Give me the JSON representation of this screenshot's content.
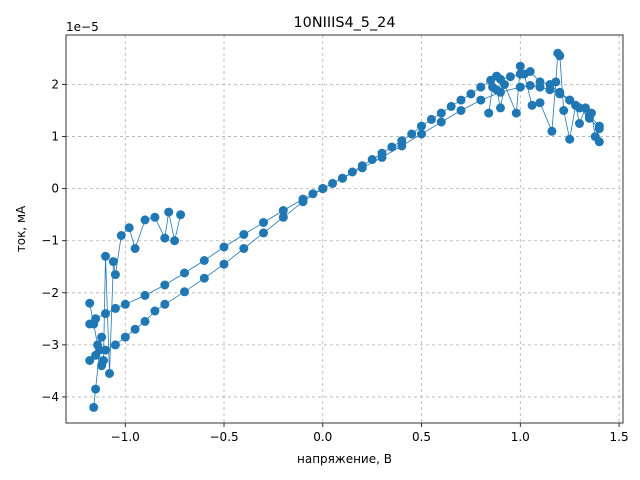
{
  "chart_data": {
    "type": "scatter",
    "title": "10NIIIS4_5_24",
    "xlabel": "напряжение, В",
    "ylabel": "ток, мА",
    "y_offset_label": "1e−5",
    "xlim": [
      -1.3,
      1.52
    ],
    "ylim": [
      -4.5,
      2.95
    ],
    "y_scale_factor": 1e-05,
    "x_ticks": [
      -1.0,
      -0.5,
      0.0,
      0.5,
      1.0,
      1.5
    ],
    "x_tick_labels": [
      "−1.0",
      "−0.5",
      "0.0",
      "0.5",
      "1.0",
      "1.5"
    ],
    "y_ticks": [
      -4,
      -3,
      -2,
      -1,
      0,
      1,
      2
    ],
    "y_tick_labels": [
      "−4",
      "−3",
      "−2",
      "−1",
      "0",
      "1",
      "2"
    ],
    "grid": true,
    "series_color": "#1f77b4",
    "branches": {
      "upper_pos": {
        "x": [
          0.0,
          0.05,
          0.1,
          0.15,
          0.2,
          0.25,
          0.3,
          0.35,
          0.4,
          0.45,
          0.5,
          0.55,
          0.6,
          0.65,
          0.7,
          0.75,
          0.8,
          0.85,
          0.88,
          0.9,
          0.95,
          1.0,
          1.05,
          1.1,
          1.15,
          1.2,
          1.25,
          1.3,
          1.35,
          1.4
        ],
        "y": [
          0.0,
          0.1,
          0.2,
          0.32,
          0.44,
          0.56,
          0.68,
          0.8,
          0.92,
          1.05,
          1.2,
          1.33,
          1.45,
          1.58,
          1.7,
          1.82,
          1.95,
          2.08,
          2.16,
          2.1,
          2.15,
          2.2,
          2.25,
          2.05,
          2.0,
          1.85,
          1.7,
          1.55,
          1.4,
          1.2
        ]
      },
      "lower_pos": {
        "x": [
          0.0,
          0.1,
          0.2,
          0.3,
          0.4,
          0.5,
          0.6,
          0.7,
          0.8,
          0.9,
          1.0,
          1.05,
          1.1,
          1.15,
          1.2,
          1.25,
          1.3,
          1.35,
          1.4
        ],
        "y": [
          0.0,
          0.2,
          0.4,
          0.6,
          0.82,
          1.05,
          1.28,
          1.5,
          1.7,
          1.85,
          1.95,
          1.98,
          1.95,
          1.9,
          1.82,
          1.7,
          1.55,
          1.35,
          1.15
        ]
      },
      "upper_neg": {
        "x": [
          0.0,
          -0.05,
          -0.1,
          -0.2,
          -0.3,
          -0.4,
          -0.5,
          -0.6,
          -0.7,
          -0.8,
          -0.9,
          -1.0,
          -1.05,
          -1.1,
          -1.15,
          -1.18
        ],
        "y": [
          0.0,
          -0.1,
          -0.2,
          -0.42,
          -0.65,
          -0.88,
          -1.12,
          -1.38,
          -1.62,
          -1.85,
          -2.05,
          -2.22,
          -2.3,
          -2.4,
          -2.5,
          -2.6
        ]
      },
      "lower_neg": {
        "x": [
          0.0,
          -0.1,
          -0.2,
          -0.3,
          -0.4,
          -0.5,
          -0.6,
          -0.7,
          -0.8,
          -0.85,
          -0.9,
          -0.95,
          -1.0,
          -1.05,
          -1.1,
          -1.15,
          -1.18
        ],
        "y": [
          0.0,
          -0.25,
          -0.55,
          -0.85,
          -1.15,
          -1.45,
          -1.72,
          -1.98,
          -2.22,
          -2.35,
          -2.55,
          -2.7,
          -2.85,
          -3.0,
          -3.1,
          -3.2,
          -3.3
        ]
      },
      "noise_pos": {
        "x": [
          0.84,
          0.86,
          0.88,
          0.9,
          0.92,
          0.98,
          1.0,
          1.02,
          1.06,
          1.1,
          1.16,
          1.18,
          1.19,
          1.2,
          1.22,
          1.25,
          1.28,
          1.3,
          1.33,
          1.36,
          1.38,
          1.4
        ],
        "y": [
          1.45,
          1.95,
          1.9,
          1.55,
          2.0,
          1.45,
          2.35,
          2.2,
          1.6,
          1.65,
          1.1,
          2.05,
          2.6,
          2.55,
          1.5,
          0.95,
          1.6,
          1.25,
          1.55,
          1.45,
          1.0,
          0.9
        ]
      },
      "noise_neg": {
        "x": [
          -1.18,
          -1.16,
          -1.14,
          -1.12,
          -1.11,
          -1.1,
          -1.08,
          -1.06,
          -1.05,
          -1.02,
          -0.98,
          -0.95,
          -0.9,
          -0.85,
          -0.8,
          -0.78,
          -0.75,
          -0.72
        ],
        "y": [
          -2.2,
          -2.6,
          -3.0,
          -3.4,
          -3.3,
          -1.3,
          -3.55,
          -1.4,
          -1.65,
          -0.9,
          -0.75,
          -1.15,
          -0.6,
          -0.55,
          -0.95,
          -0.45,
          -1.0,
          -0.5
        ]
      },
      "outliers": {
        "x": [
          -1.16,
          -1.15,
          -1.13,
          -1.12
        ],
        "y": [
          -4.2,
          -3.85,
          -3.1,
          -2.85
        ]
      }
    }
  }
}
